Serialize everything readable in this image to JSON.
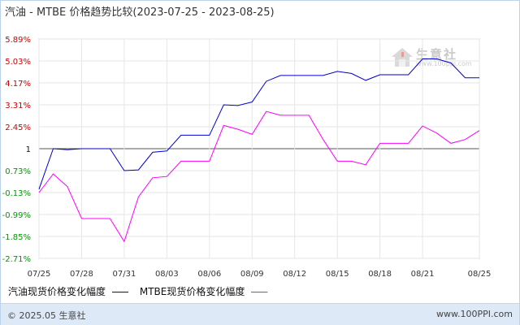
{
  "title": "汽油 - MTBE 价格趋势比较(2023-07-25 - 2023-08-25)",
  "watermark": {
    "name": "生意社",
    "url": "www.100ppi.com"
  },
  "footer": {
    "copyright": "© 2025.05 生意社",
    "site": "www.100PPI.com"
  },
  "colors": {
    "series1": "#0000cc",
    "series2": "#ff00ff",
    "neg_tick": "#009900",
    "pos_tick": "#cc0000",
    "base_tick": "#111111"
  },
  "chart_data": {
    "type": "line",
    "x": [
      "07/25",
      "07/26",
      "07/27",
      "07/28",
      "07/29",
      "07/30",
      "07/31",
      "08/01",
      "08/02",
      "08/03",
      "08/04",
      "08/05",
      "08/06",
      "08/07",
      "08/08",
      "08/09",
      "08/10",
      "08/11",
      "08/12",
      "08/13",
      "08/14",
      "08/15",
      "08/16",
      "08/17",
      "08/18",
      "08/19",
      "08/20",
      "08/21",
      "08/22",
      "08/23",
      "08/24",
      "08/25"
    ],
    "x_tick_labels": [
      "07/25",
      "07/28",
      "07/31",
      "08/03",
      "08/06",
      "08/09",
      "08/12",
      "08/15",
      "08/18",
      "08/21",
      "08/25"
    ],
    "x_tick_dates": [
      "07/25",
      "07/28",
      "07/31",
      "08/03",
      "08/06",
      "08/09",
      "08/12",
      "08/15",
      "08/18",
      "08/21",
      "08/25"
    ],
    "y_ticks": [
      5.89,
      5.03,
      4.17,
      3.31,
      2.45,
      1.59,
      0.73,
      -0.13,
      -0.99,
      -1.85,
      -2.71
    ],
    "y_tick_labels": [
      "5.89%",
      "5.03%",
      "4.17%",
      "3.31%",
      "2.45%",
      "1",
      "0.73%",
      "-0.13%",
      "-0.99%",
      "-1.85%",
      "-2.71%"
    ],
    "baseline": 1.59,
    "ylim": [
      -2.71,
      5.89
    ],
    "grid": true,
    "series": [
      {
        "name": "汽油现货价格变化幅度",
        "color": "#0000cc",
        "values": [
          0,
          1.59,
          1.55,
          1.59,
          1.59,
          1.59,
          0.73,
          0.76,
          1.45,
          1.5,
          2.12,
          2.12,
          2.12,
          3.31,
          3.28,
          3.42,
          4.23,
          4.46,
          4.46,
          4.46,
          4.46,
          4.62,
          4.54,
          4.27,
          4.49,
          4.49,
          4.49,
          5.11,
          5.11,
          4.95,
          4.37,
          4.37
        ]
      },
      {
        "name": "MTBE现货价格变化幅度",
        "color": "#ff00ff",
        "values": [
          -0.13,
          0.6,
          0.1,
          -1.15,
          -1.15,
          -1.15,
          -2.05,
          -0.3,
          0.45,
          0.5,
          1.1,
          1.1,
          1.1,
          2.5,
          2.35,
          2.15,
          3.05,
          2.9,
          2.9,
          2.9,
          1.95,
          1.1,
          1.1,
          0.96,
          1.8,
          1.8,
          1.8,
          2.48,
          2.2,
          1.8,
          1.95,
          2.3
        ]
      }
    ]
  }
}
